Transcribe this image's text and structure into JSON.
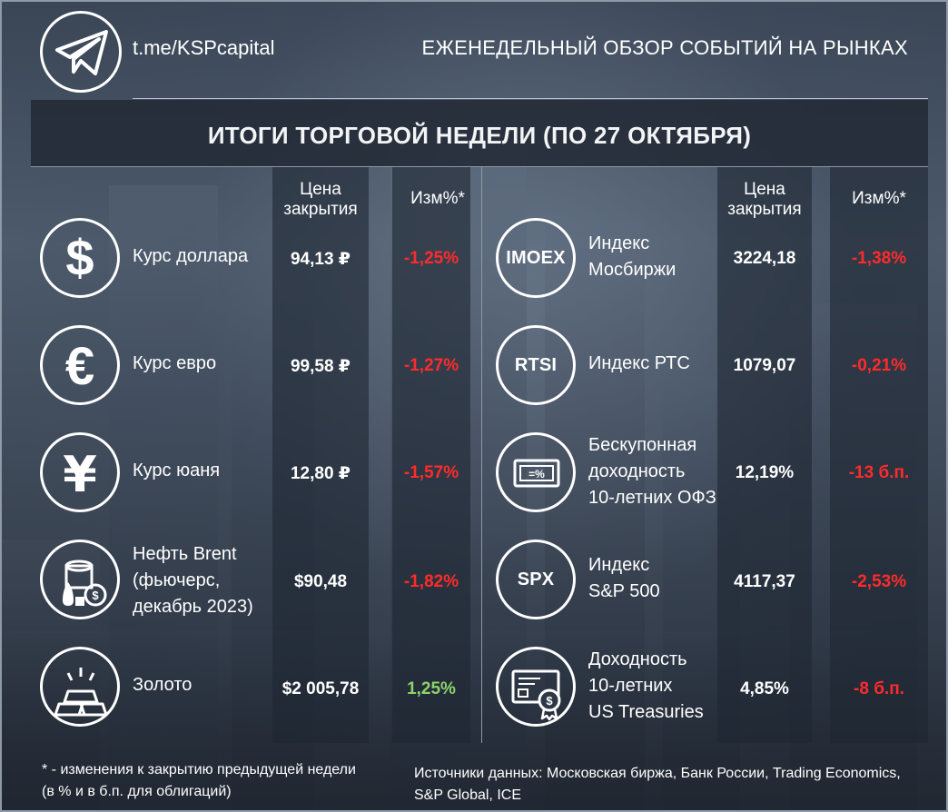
{
  "header": {
    "channel": "t.me/KSPcapital",
    "title": "ЕЖЕНЕДЕЛЬНЫЙ ОБЗОР СОБЫТИЙ НА РЫНКАХ"
  },
  "main_title": "ИТОГИ ТОРГОВОЙ НЕДЕЛИ (ПО 27 ОКТЯБРЯ)",
  "columns": {
    "price_line1": "Цена",
    "price_line2": "закрытия",
    "change": "Изм%*"
  },
  "left_rows": [
    {
      "icon": "dollar-icon",
      "label": [
        "Курс доллара"
      ],
      "price": "94,13 ₽",
      "change": "-1,25%",
      "direction": "down"
    },
    {
      "icon": "euro-icon",
      "label": [
        "Курс евро"
      ],
      "price": "99,58 ₽",
      "change": "-1,27%",
      "direction": "down"
    },
    {
      "icon": "yuan-icon",
      "label": [
        "Курс юаня"
      ],
      "price": "12,80 ₽",
      "change": "-1,57%",
      "direction": "down"
    },
    {
      "icon": "oil-barrel-icon",
      "label": [
        "Нефть Brent",
        "(фьючерс,",
        "декабрь 2023)"
      ],
      "price": "$90,48",
      "change": "-1,82%",
      "direction": "down"
    },
    {
      "icon": "gold-bars-icon",
      "label": [
        "Золото"
      ],
      "price": "$2 005,78",
      "change": "1,25%",
      "direction": "up"
    }
  ],
  "right_rows": [
    {
      "icon_text": "IMOEX",
      "label": [
        "Индекс",
        "Мосбиржи"
      ],
      "price": "3224,18",
      "change": "-1,38%",
      "direction": "down"
    },
    {
      "icon_text": "RTSI",
      "label": [
        "Индекс РТС"
      ],
      "price": "1079,07",
      "change": "-0,21%",
      "direction": "down"
    },
    {
      "icon": "bond-certificate-icon",
      "label": [
        "Бескупонная",
        "доходность",
        "10-летних ОФЗ"
      ],
      "price": "12,19%",
      "change": "-13 б.п.",
      "direction": "down"
    },
    {
      "icon_text": "SPX",
      "label": [
        "Индекс",
        "S&P 500"
      ],
      "price": "4117,37",
      "change": "-2,53%",
      "direction": "down"
    },
    {
      "icon": "treasury-certificate-icon",
      "label": [
        "Доходность",
        "10-летних",
        "US Treasuries"
      ],
      "price": "4,85%",
      "change": "-8 б.п.",
      "direction": "down"
    }
  ],
  "footnote": [
    "* - изменения к закрытию предыдущей недели",
    "(в % и в б.п. для облигаций)"
  ],
  "sources": [
    "Источники данных: Московская биржа, Банк России, Trading Economics,",
    "S&P Global, ICE"
  ],
  "colors": {
    "negative": "#ff2b2b",
    "positive": "#8fd36b"
  }
}
